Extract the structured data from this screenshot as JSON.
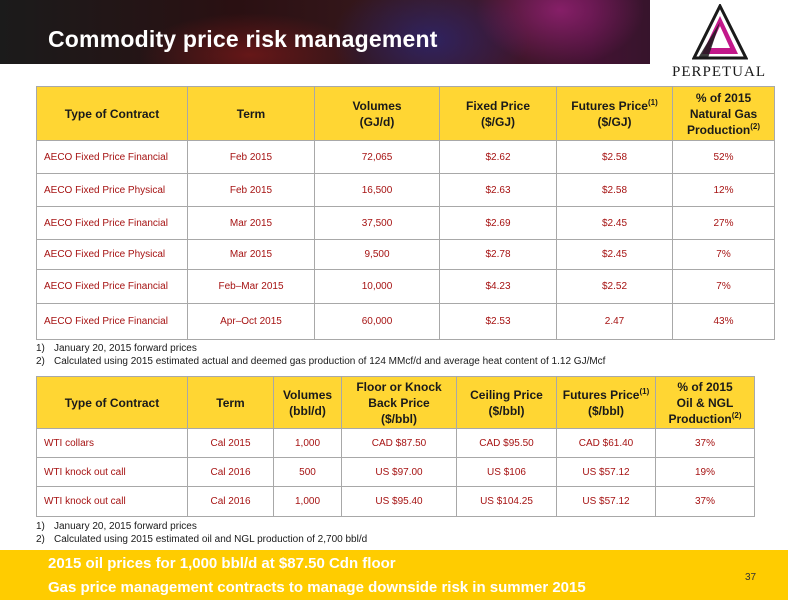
{
  "header": {
    "title": "Commodity price risk management"
  },
  "logo": {
    "text": "PERPETUAL",
    "mark": "triangle-logo-icon"
  },
  "gas_table": {
    "headers": [
      {
        "label": "Type of Contract"
      },
      {
        "label": "Term"
      },
      {
        "label": "Volumes",
        "label2": "(GJ/d)"
      },
      {
        "label": "Fixed Price",
        "label2": "($/GJ)"
      },
      {
        "label": "Futures Price",
        "sup": "(1)",
        "label2": "($/GJ)"
      },
      {
        "label": "% of 2015",
        "label2": "Natural Gas Production",
        "sup": "(2)"
      }
    ],
    "rows": [
      [
        "AECO Fixed Price Financial",
        "Feb 2015",
        "72,065",
        "$2.62",
        "$2.58",
        "52%"
      ],
      [
        "AECO Fixed Price Physical",
        "Feb 2015",
        "16,500",
        "$2.63",
        "$2.58",
        "12%"
      ],
      [
        "AECO Fixed Price Financial",
        "Mar 2015",
        "37,500",
        "$2.69",
        "$2.45",
        "27%"
      ],
      [
        "AECO Fixed Price Physical",
        "Mar 2015",
        "9,500",
        "$2.78",
        "$2.45",
        "7%"
      ],
      [
        "AECO Fixed Price Financial",
        "Feb–Mar 2015",
        "10,000",
        "$4.23",
        "$2.52",
        "7%"
      ],
      [
        "AECO Fixed Price Financial",
        "Apr–Oct 2015",
        "60,000",
        "$2.53",
        "2.47",
        "43%"
      ]
    ],
    "notes": [
      {
        "num": "1)",
        "text": "January 20, 2015 forward prices"
      },
      {
        "num": "2)",
        "text": "Calculated using 2015 estimated actual and deemed gas production of  124 MMcf/d and average heat content of 1.12 GJ/Mcf"
      }
    ]
  },
  "oil_table": {
    "headers": [
      {
        "label": "Type of Contract"
      },
      {
        "label": "Term"
      },
      {
        "label": "Volumes",
        "label2": "(bbl/d)"
      },
      {
        "label": "Floor or Knock Back Price",
        "label2": "($/bbl)"
      },
      {
        "label": "Ceiling Price",
        "label2": "($/bbl)"
      },
      {
        "label": "Futures Price",
        "sup": "(1)",
        "label2": "($/bbl)"
      },
      {
        "label": "% of 2015",
        "label2": "Oil & NGL Production",
        "sup": "(2)"
      }
    ],
    "rows": [
      [
        "WTI collars",
        "Cal 2015",
        "1,000",
        "CAD $87.50",
        "CAD $95.50",
        "CAD $61.40",
        "37%"
      ],
      [
        "WTI knock out call",
        "Cal 2016",
        "500",
        "US $97.00",
        "US $106",
        "US $57.12",
        "19%"
      ],
      [
        "WTI knock out call",
        "Cal 2016",
        "1,000",
        "US $95.40",
        "US $104.25",
        "US $57.12",
        "37%"
      ]
    ],
    "notes": [
      {
        "num": "1)",
        "text": "January 20, 2015 forward prices"
      },
      {
        "num": "2)",
        "text": "Calculated using 2015 estimated oil and NGL production of 2,700 bbl/d"
      }
    ]
  },
  "footer": {
    "line1": "2015 oil prices for 1,000 bbl/d at $87.50 Cdn floor",
    "line2": "Gas price management contracts to manage downside risk in summer 2015",
    "page_number": "37"
  }
}
